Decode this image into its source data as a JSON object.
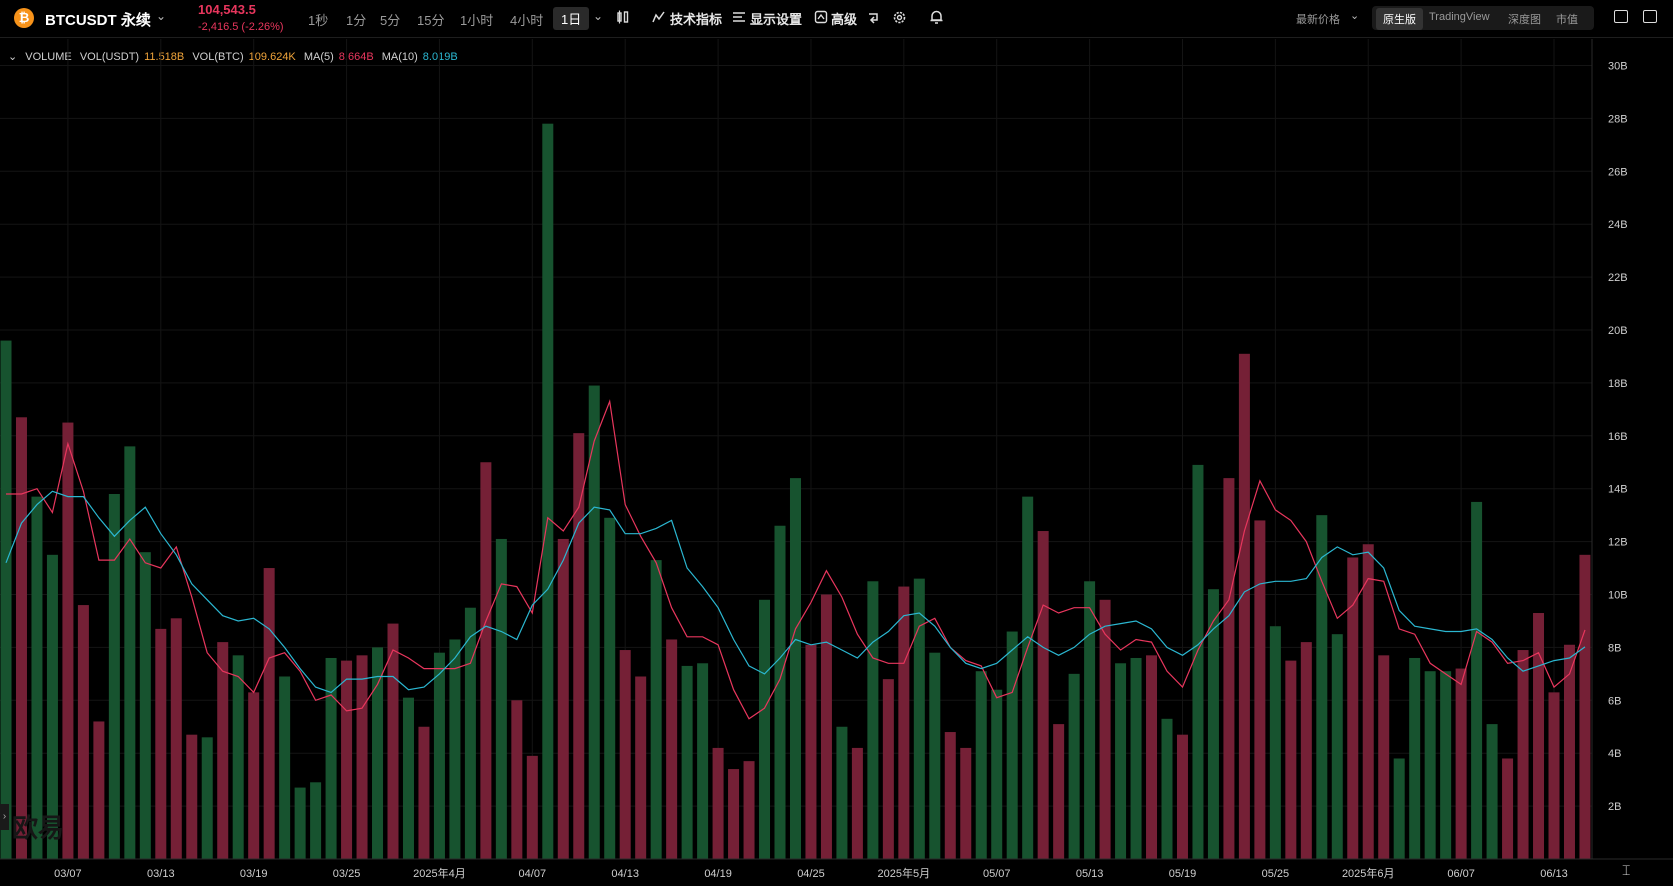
{
  "header": {
    "symbol": "BTCUSDT 永续",
    "price": "104,543.5",
    "change": "-2,416.5 (-2.26%)",
    "timeframes": [
      "1秒",
      "1分",
      "5分",
      "15分",
      "1小时",
      "4小时"
    ],
    "active_timeframe": "1日",
    "tools": {
      "indicators": "技术指标",
      "display": "显示设置",
      "advanced": "高级"
    },
    "price_type": "最新价格",
    "views": [
      "原生版",
      "TradingView",
      "深度图",
      "市值"
    ],
    "active_view": "原生版"
  },
  "legend": {
    "name": "VOLUME",
    "vol_usdt_label": "VOL(USDT)",
    "vol_usdt_value": "11.518B",
    "vol_btc_label": "VOL(BTC)",
    "vol_btc_value": "109.624K",
    "ma5_label": "MA(5)",
    "ma5_value": "8.664B",
    "ma10_label": "MA(10)",
    "ma10_value": "8.019B"
  },
  "watermark": "欧易",
  "colors": {
    "up": "#17532f",
    "down": "#752036",
    "ma5": "#e8365d",
    "ma10": "#2bb7d1",
    "orange": "#f0a43a"
  },
  "chart_data": {
    "type": "bar",
    "unit": "B",
    "ylim": [
      0,
      30
    ],
    "y_ticks": [
      "2B",
      "4B",
      "6B",
      "8B",
      "10B",
      "12B",
      "14B",
      "16B",
      "18B",
      "20B",
      "22B",
      "24B",
      "26B",
      "28B",
      "30B"
    ],
    "x_ticks": [
      "03/07",
      "03/13",
      "03/19",
      "03/25",
      "2025年4月",
      "04/07",
      "04/13",
      "04/19",
      "04/25",
      "2025年5月",
      "05/07",
      "05/13",
      "05/19",
      "05/25",
      "2025年6月",
      "06/07",
      "06/13"
    ],
    "direction": [
      "up",
      "down",
      "up",
      "up",
      "down",
      "down",
      "down",
      "up",
      "up",
      "up",
      "down",
      "down",
      "down",
      "up",
      "down",
      "up",
      "down",
      "down",
      "up",
      "up",
      "up",
      "up",
      "down",
      "down",
      "up",
      "down",
      "up",
      "down",
      "up",
      "up",
      "up",
      "down",
      "up",
      "down",
      "down",
      "up",
      "down",
      "down",
      "up",
      "up",
      "down",
      "down",
      "up",
      "down",
      "up",
      "up",
      "down",
      "down",
      "down",
      "up",
      "up",
      "up",
      "down",
      "down",
      "up",
      "down",
      "up",
      "down",
      "down",
      "up",
      "up",
      "down",
      "down",
      "up",
      "up",
      "up",
      "up",
      "down",
      "down",
      "up",
      "up",
      "down",
      "up",
      "up",
      "down",
      "up",
      "down",
      "up",
      "up",
      "down",
      "down",
      "down",
      "up",
      "down",
      "down",
      "up",
      "up",
      "down",
      "down",
      "down",
      "up",
      "up",
      "up",
      "up",
      "down",
      "up",
      "up",
      "down"
    ],
    "series": [
      {
        "name": "VOL(USDT)",
        "values": [
          19.6,
          16.7,
          13.7,
          11.5,
          16.5,
          9.6,
          5.2,
          13.8,
          15.6,
          11.6,
          8.7,
          9.1,
          4.7,
          4.6,
          8.2,
          7.7,
          6.3,
          11.0,
          6.9,
          2.7,
          2.9,
          7.6,
          7.5,
          7.7,
          8.0,
          8.9,
          6.1,
          5.0,
          7.8,
          8.3,
          9.5,
          15.0,
          12.1,
          6.0,
          3.9,
          27.8,
          12.1,
          16.1,
          17.9,
          12.9,
          7.9,
          6.9,
          11.3,
          8.3,
          7.3,
          7.4,
          4.2,
          3.4,
          3.7,
          9.8,
          12.6,
          14.4,
          8.1,
          10.0,
          5.0,
          4.2,
          10.5,
          6.8,
          10.3,
          10.6,
          7.8,
          4.8,
          4.2,
          7.1,
          6.4,
          8.6,
          13.7,
          12.4,
          5.1,
          7.0,
          10.5,
          9.8,
          7.4,
          7.6,
          7.7,
          5.3,
          4.7,
          14.9,
          10.2,
          14.4,
          19.1,
          12.8,
          8.8,
          7.5,
          8.2,
          13.0,
          8.5,
          11.4,
          11.9,
          7.7,
          3.8,
          7.6,
          7.1,
          7.1,
          7.2,
          13.5,
          5.1,
          3.8,
          7.9,
          9.3,
          6.3,
          8.1,
          11.5
        ]
      },
      {
        "name": "MA(5)",
        "values": [
          13.8,
          13.8,
          14.0,
          13.1,
          15.7,
          13.9,
          11.3,
          11.3,
          12.1,
          11.2,
          11.0,
          11.8,
          9.9,
          7.8,
          7.1,
          6.9,
          6.3,
          7.6,
          7.8,
          7.1,
          6.0,
          6.2,
          5.6,
          5.7,
          6.6,
          7.9,
          7.6,
          7.2,
          7.2,
          7.2,
          7.4,
          9.0,
          10.4,
          10.3,
          9.3,
          12.9,
          12.4,
          13.3,
          15.8,
          17.3,
          13.4,
          12.2,
          11.2,
          9.5,
          8.4,
          8.4,
          8.1,
          6.4,
          5.3,
          5.7,
          6.8,
          8.7,
          9.7,
          10.9,
          9.9,
          8.5,
          7.6,
          7.4,
          7.4,
          8.8,
          9.1,
          8.0,
          7.5,
          7.3,
          6.1,
          6.3,
          8.0,
          9.6,
          9.3,
          9.5,
          9.5,
          8.5,
          7.9,
          8.3,
          8.2,
          7.1,
          6.5,
          7.9,
          9.0,
          9.8,
          12.4,
          14.3,
          13.2,
          12.8,
          12.0,
          10.5,
          9.1,
          9.6,
          10.6,
          10.5,
          8.7,
          8.5,
          7.4,
          7.0,
          6.6,
          8.6,
          8.2,
          7.4,
          7.5,
          7.8,
          6.5,
          7.0,
          8.66
        ]
      },
      {
        "name": "MA(10)",
        "values": [
          11.2,
          12.7,
          13.4,
          13.9,
          13.7,
          13.7,
          12.9,
          12.2,
          12.8,
          13.3,
          12.3,
          11.5,
          10.4,
          9.8,
          9.2,
          9.0,
          9.1,
          8.7,
          8.0,
          7.2,
          6.5,
          6.3,
          6.8,
          6.8,
          6.9,
          6.9,
          6.4,
          6.5,
          7.0,
          7.6,
          8.4,
          8.8,
          8.6,
          8.3,
          9.6,
          10.2,
          11.3,
          12.7,
          13.3,
          13.2,
          12.3,
          12.3,
          12.5,
          12.8,
          11.0,
          10.3,
          9.5,
          8.3,
          7.3,
          7.0,
          7.6,
          8.3,
          8.1,
          8.2,
          7.9,
          7.6,
          8.2,
          8.6,
          9.2,
          9.3,
          8.8,
          8.0,
          7.4,
          7.2,
          7.4,
          7.9,
          8.4,
          8.0,
          7.7,
          8.0,
          8.5,
          8.8,
          8.9,
          9.0,
          8.7,
          8.0,
          7.7,
          8.1,
          8.7,
          9.2,
          10.1,
          10.4,
          10.5,
          10.5,
          10.6,
          11.4,
          11.8,
          11.5,
          11.6,
          11.0,
          9.4,
          8.8,
          8.7,
          8.6,
          8.6,
          8.7,
          8.3,
          7.6,
          7.1,
          7.3,
          7.5,
          7.6,
          8.02
        ]
      }
    ]
  }
}
